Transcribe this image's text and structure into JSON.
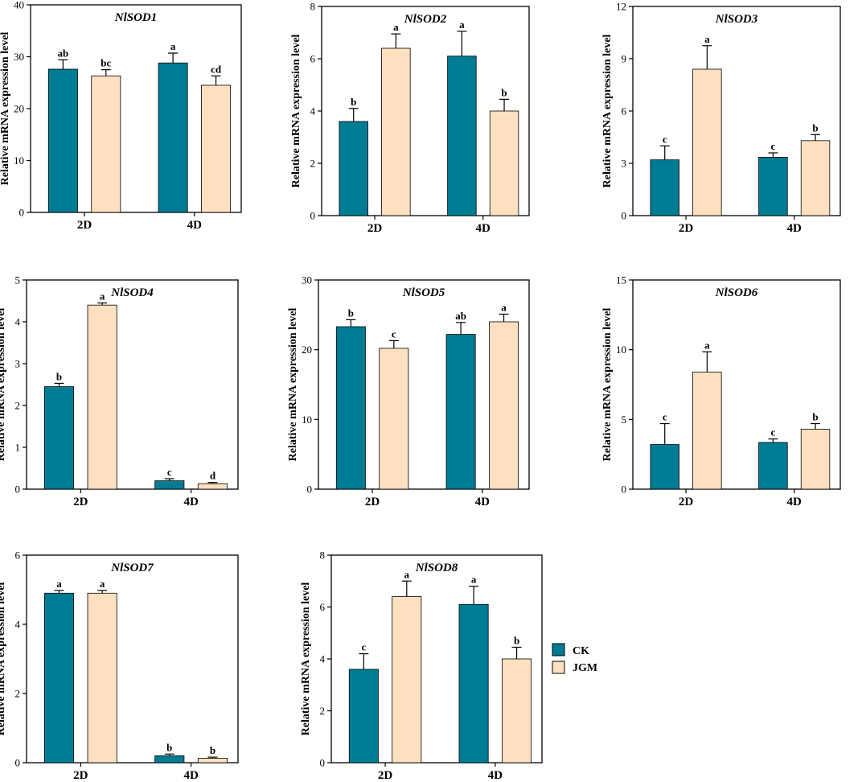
{
  "chart_data": [
    {
      "type": "bar",
      "title": "NlSOD1",
      "ylabel": "Relative mRNA expression level",
      "categories": [
        "2D",
        "4D"
      ],
      "ylim": [
        0,
        40
      ],
      "yticks": [
        0,
        10,
        20,
        30,
        40
      ],
      "ytick_labels": [
        "0",
        "10",
        "20",
        "30",
        "40"
      ],
      "series": [
        {
          "name": "CK",
          "values": [
            27.6,
            28.8
          ],
          "errors": [
            1.8,
            1.9
          ],
          "letters": [
            "ab",
            "a"
          ]
        },
        {
          "name": "JGM",
          "values": [
            26.3,
            24.5
          ],
          "errors": [
            1.2,
            1.8
          ],
          "letters": [
            "bc",
            "cd"
          ]
        }
      ]
    },
    {
      "type": "bar",
      "title": "NlSOD2",
      "ylabel": "Relative mRNA expression level",
      "categories": [
        "2D",
        "4D"
      ],
      "ylim": [
        0,
        8
      ],
      "yticks": [
        0,
        2,
        4,
        6,
        8
      ],
      "ytick_labels": [
        "0",
        "2",
        "4",
        "6",
        "8"
      ],
      "series": [
        {
          "name": "CK",
          "values": [
            3.6,
            6.1
          ],
          "errors": [
            0.5,
            0.95
          ],
          "letters": [
            "b",
            "a"
          ]
        },
        {
          "name": "JGM",
          "values": [
            6.4,
            4.0
          ],
          "errors": [
            0.55,
            0.45
          ],
          "letters": [
            "a",
            "b"
          ]
        }
      ]
    },
    {
      "type": "bar",
      "title": "NlSOD3",
      "ylabel": "Relative mRNA expression level",
      "categories": [
        "2D",
        "4D"
      ],
      "ylim": [
        0,
        12
      ],
      "yticks": [
        0,
        3,
        6,
        9,
        12
      ],
      "ytick_labels": [
        "0",
        "3",
        "6",
        "9",
        "12"
      ],
      "series": [
        {
          "name": "CK",
          "values": [
            3.2,
            3.35
          ],
          "errors": [
            0.8,
            0.25
          ],
          "letters": [
            "c",
            "c"
          ]
        },
        {
          "name": "JGM",
          "values": [
            8.4,
            4.3
          ],
          "errors": [
            1.35,
            0.35
          ],
          "letters": [
            "a",
            "b"
          ]
        }
      ]
    },
    {
      "type": "bar",
      "title": "NlSOD4",
      "ylabel": "Relative mRNA expression level",
      "categories": [
        "2D",
        "4D"
      ],
      "ylim": [
        0,
        5
      ],
      "yticks": [
        0,
        1,
        2,
        3,
        4,
        5
      ],
      "ytick_labels": [
        "0",
        "1",
        "2",
        "3",
        "4",
        "5"
      ],
      "series": [
        {
          "name": "CK",
          "values": [
            2.45,
            0.2
          ],
          "errors": [
            0.08,
            0.05
          ],
          "letters": [
            "b",
            "c"
          ]
        },
        {
          "name": "JGM",
          "values": [
            4.4,
            0.13
          ],
          "errors": [
            0.05,
            0.03
          ],
          "letters": [
            "a",
            "d"
          ]
        }
      ]
    },
    {
      "type": "bar",
      "title": "NlSOD5",
      "ylabel": "Relative mRNA expression level",
      "categories": [
        "2D",
        "4D"
      ],
      "ylim": [
        0,
        30
      ],
      "yticks": [
        0,
        10,
        20,
        30
      ],
      "ytick_labels": [
        "0",
        "10",
        "20",
        "30"
      ],
      "series": [
        {
          "name": "CK",
          "values": [
            23.3,
            22.2
          ],
          "errors": [
            1.0,
            1.7
          ],
          "letters": [
            "b",
            "ab"
          ]
        },
        {
          "name": "JGM",
          "values": [
            20.2,
            24.0
          ],
          "errors": [
            1.1,
            1.1
          ],
          "letters": [
            "c",
            "a"
          ]
        }
      ]
    },
    {
      "type": "bar",
      "title": "NlSOD6",
      "ylabel": "Relative mRNA expression level",
      "categories": [
        "2D",
        "4D"
      ],
      "ylim": [
        0,
        15
      ],
      "yticks": [
        0,
        5,
        10,
        15
      ],
      "ytick_labels": [
        "0",
        "5",
        "10",
        "15"
      ],
      "series": [
        {
          "name": "CK",
          "values": [
            3.2,
            3.35
          ],
          "errors": [
            1.5,
            0.25
          ],
          "letters": [
            "c",
            "c"
          ]
        },
        {
          "name": "JGM",
          "values": [
            8.4,
            4.3
          ],
          "errors": [
            1.45,
            0.4
          ],
          "letters": [
            "a",
            "b"
          ]
        }
      ]
    },
    {
      "type": "bar",
      "title": "NlSOD7",
      "ylabel": "Relative mRNA expression level",
      "categories": [
        "2D",
        "4D"
      ],
      "ylim": [
        0,
        6
      ],
      "yticks": [
        0,
        2,
        4,
        6
      ],
      "ytick_labels": [
        "0",
        "2",
        "4",
        "6"
      ],
      "series": [
        {
          "name": "CK",
          "values": [
            4.9,
            0.2
          ],
          "errors": [
            0.08,
            0.05
          ],
          "letters": [
            "a",
            "b"
          ]
        },
        {
          "name": "JGM",
          "values": [
            4.9,
            0.13
          ],
          "errors": [
            0.08,
            0.03
          ],
          "letters": [
            "a",
            "b"
          ]
        }
      ]
    },
    {
      "type": "bar",
      "title": "NlSOD8",
      "ylabel": "Relative mRNA expression level",
      "categories": [
        "2D",
        "4D"
      ],
      "ylim": [
        0,
        8
      ],
      "yticks": [
        0,
        2,
        4,
        6,
        8
      ],
      "ytick_labels": [
        "0",
        "2",
        "4",
        "6",
        "8"
      ],
      "series": [
        {
          "name": "CK",
          "values": [
            3.6,
            6.1
          ],
          "errors": [
            0.6,
            0.7
          ],
          "letters": [
            "c",
            "a"
          ]
        },
        {
          "name": "JGM",
          "values": [
            6.4,
            4.0
          ],
          "errors": [
            0.6,
            0.45
          ],
          "letters": [
            "a",
            "b"
          ]
        }
      ]
    }
  ],
  "legend": {
    "items": [
      {
        "label": "CK",
        "color": "#007b94"
      },
      {
        "label": "JGM",
        "color": "#fde0bf"
      }
    ]
  },
  "colors": {
    "CK": "#007b94",
    "JGM": "#fde0bf",
    "axis": "#000000"
  }
}
